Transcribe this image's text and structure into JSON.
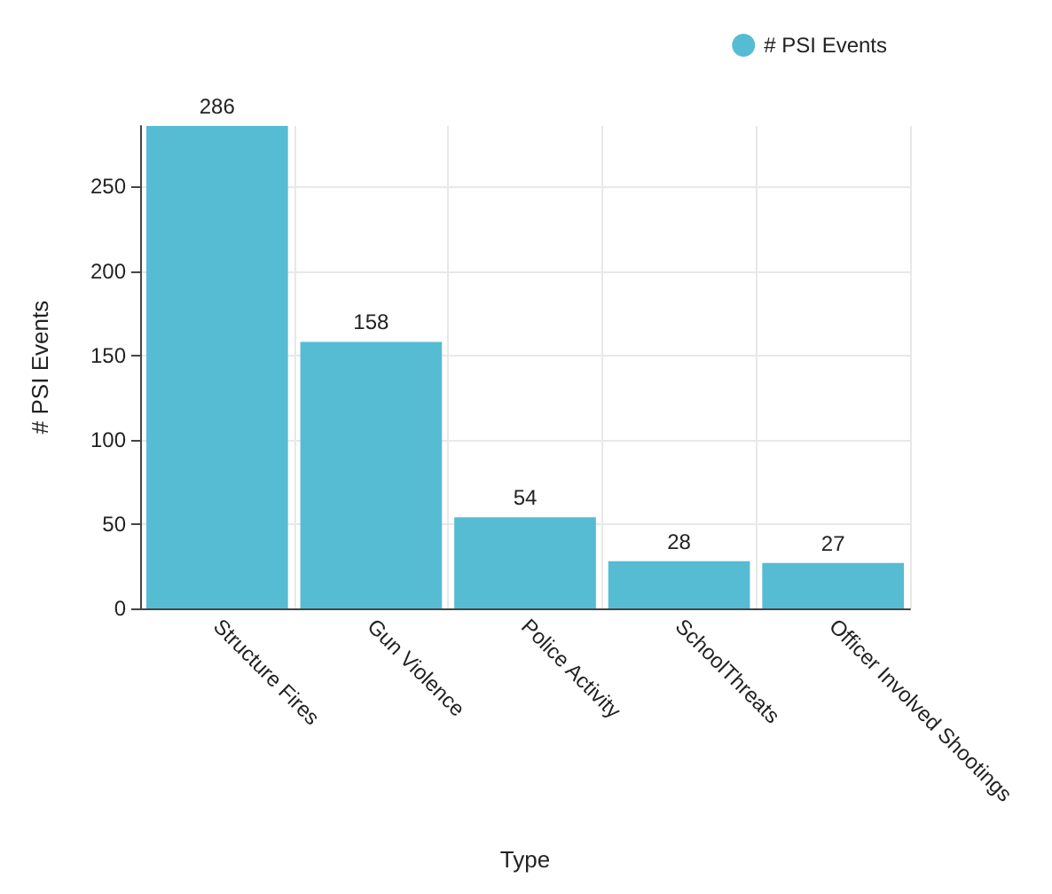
{
  "chart_data": {
    "type": "bar",
    "xlabel": "Type",
    "ylabel": "# PSI Events",
    "categories": [
      "Structure Fires",
      "Gun Violence",
      "Police Activity",
      "SchoolThreats",
      "Officer Involved Shootings"
    ],
    "series": [
      {
        "name": "# PSI Events",
        "color": "#56bcd4",
        "values": [
          286,
          158,
          54,
          28,
          27
        ]
      }
    ],
    "ylim": [
      0,
      286
    ],
    "yticks": [
      0,
      50,
      100,
      150,
      200,
      250
    ],
    "grid": true,
    "legend": "top right",
    "data_labels": true,
    "marker": "circle"
  }
}
